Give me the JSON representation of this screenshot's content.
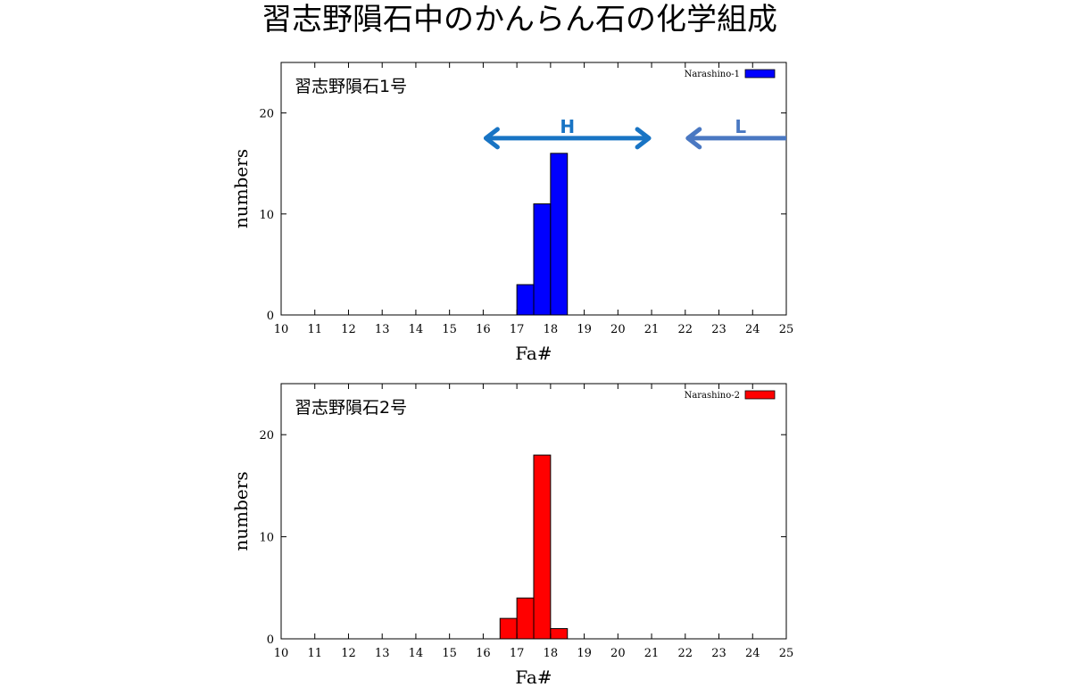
{
  "title": "習志野隕石中のかんらん石の化学組成",
  "colors": {
    "frame": "#000000",
    "h_arrow": "#1874c4",
    "l_arrow": "#4a78c2"
  },
  "chart_data": [
    {
      "type": "bar",
      "panel_label": "習志野隕石1号",
      "legend": "Narashino-1",
      "color": "#0000ff",
      "xlabel": "Fa#",
      "ylabel": "numbers",
      "xlim": [
        10,
        25
      ],
      "ylim": [
        0,
        25
      ],
      "xticks": [
        "10",
        "11",
        "12",
        "13",
        "14",
        "15",
        "16",
        "17",
        "18",
        "19",
        "20",
        "21",
        "22",
        "23",
        "24",
        "25"
      ],
      "yticks": [
        "0",
        "10",
        "20"
      ],
      "bin_width": 0.5,
      "bins": [
        {
          "x": 17.0,
          "value": 3
        },
        {
          "x": 17.5,
          "value": 11
        },
        {
          "x": 18.0,
          "value": 16
        }
      ],
      "annotations": [
        {
          "label": "H",
          "from": 16.0,
          "to": 21.0,
          "y": 17.5,
          "style": "double",
          "color": "#1874c4"
        },
        {
          "label": "L",
          "from": 22.0,
          "to": 25.0,
          "y": 17.5,
          "style": "left",
          "color": "#4a78c2"
        }
      ]
    },
    {
      "type": "bar",
      "panel_label": "習志野隕石2号",
      "legend": "Narashino-2",
      "color": "#ff0000",
      "xlabel": "Fa#",
      "ylabel": "numbers",
      "xlim": [
        10,
        25
      ],
      "ylim": [
        0,
        25
      ],
      "xticks": [
        "10",
        "11",
        "12",
        "13",
        "14",
        "15",
        "16",
        "17",
        "18",
        "19",
        "20",
        "21",
        "22",
        "23",
        "24",
        "25"
      ],
      "yticks": [
        "0",
        "10",
        "20"
      ],
      "bin_width": 0.5,
      "bins": [
        {
          "x": 16.5,
          "value": 2
        },
        {
          "x": 17.0,
          "value": 4
        },
        {
          "x": 17.5,
          "value": 18
        },
        {
          "x": 18.0,
          "value": 1
        }
      ],
      "annotations": []
    }
  ]
}
